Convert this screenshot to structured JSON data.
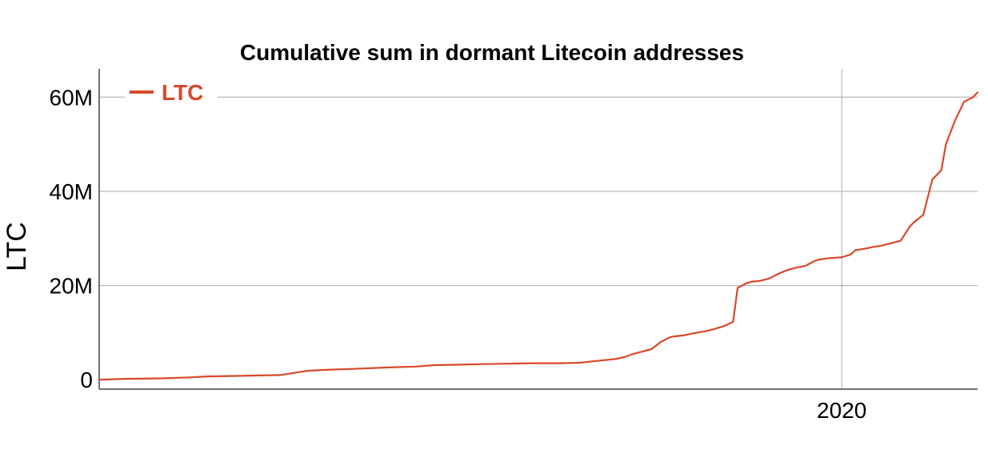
{
  "chart_data": {
    "type": "line",
    "title": "Cumulative sum in dormant Litecoin addresses",
    "xlabel": "",
    "ylabel": "LTC",
    "x_tick_labels": [
      "2020"
    ],
    "x_ticks": [
      2020
    ],
    "xlim": [
      2011.8,
      2021.5
    ],
    "ylim": [
      -2,
      66
    ],
    "y_ticks": [
      0,
      20,
      40,
      60
    ],
    "y_tick_labels": [
      "0",
      "20M",
      "40M",
      "60M"
    ],
    "grid": true,
    "legend_position": "top-left",
    "colors": {
      "series": "#d9482b",
      "grid": "#a8a8a8",
      "axis": "#444444",
      "text": "#000000"
    },
    "series": [
      {
        "name": "LTC",
        "x": [
          2011.8,
          2012.1,
          2012.5,
          2012.8,
          2013.0,
          2013.3,
          2013.8,
          2014.0,
          2014.1,
          2014.3,
          2014.6,
          2015.0,
          2015.3,
          2015.5,
          2015.8,
          2016.0,
          2016.3,
          2016.6,
          2016.9,
          2017.1,
          2017.3,
          2017.5,
          2017.6,
          2017.7,
          2017.9,
          2018.0,
          2018.1,
          2018.15,
          2018.25,
          2018.3,
          2018.4,
          2018.5,
          2018.6,
          2018.7,
          2018.8,
          2018.85,
          2018.95,
          2019.0,
          2019.1,
          2019.2,
          2019.3,
          2019.4,
          2019.5,
          2019.6,
          2019.7,
          2019.75,
          2019.85,
          2020.0,
          2020.1,
          2020.15,
          2020.25,
          2020.35,
          2020.45,
          2020.55,
          2020.65,
          2020.75,
          2020.8,
          2020.9,
          2021.0,
          2021.1,
          2021.15,
          2021.25,
          2021.35,
          2021.45,
          2021.5
        ],
        "values": [
          0,
          0.2,
          0.3,
          0.5,
          0.7,
          0.8,
          1.0,
          1.6,
          1.9,
          2.1,
          2.3,
          2.6,
          2.8,
          3.1,
          3.2,
          3.3,
          3.4,
          3.5,
          3.5,
          3.6,
          4.0,
          4.4,
          4.8,
          5.5,
          6.5,
          8.0,
          9.0,
          9.2,
          9.4,
          9.6,
          10.0,
          10.3,
          10.8,
          11.4,
          12.3,
          19.5,
          20.5,
          20.8,
          21.0,
          21.5,
          22.5,
          23.3,
          23.8,
          24.2,
          25.2,
          25.5,
          25.8,
          26.0,
          26.6,
          27.5,
          27.8,
          28.2,
          28.5,
          29.0,
          29.5,
          32.5,
          33.5,
          35.0,
          42.5,
          44.5,
          50.0,
          55.0,
          59.0,
          60.0,
          61.0
        ]
      }
    ]
  }
}
